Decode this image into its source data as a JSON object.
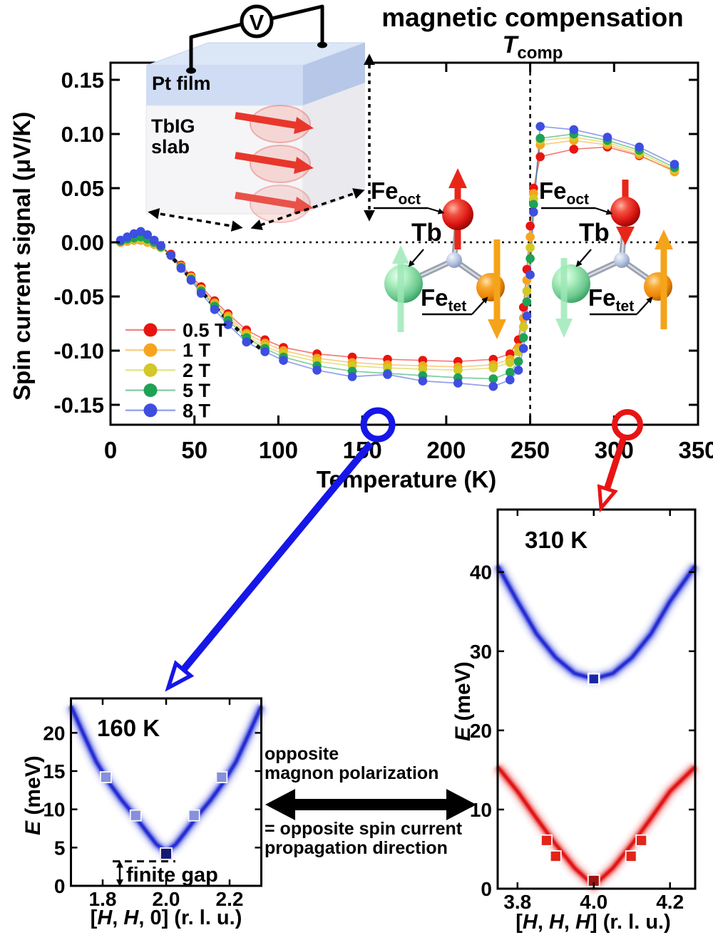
{
  "title": {
    "line1": "magnetic compensation",
    "t_symbol": "T",
    "t_sub": "comp"
  },
  "inset": {
    "voltmeter_label": "V",
    "pt_label": "Pt film",
    "slab_label_1": "TbIG",
    "slab_label_2": "slab"
  },
  "molecule_labels": {
    "fe": "Fe",
    "oct": "oct",
    "tet": "tet",
    "tb": "Tb"
  },
  "annotation": {
    "line1": "opposite",
    "line2": "magnon polarization",
    "line3": "= opposite spin current",
    "line4": "propagation direction"
  },
  "chart_data": [
    {
      "id": "spin-current-vs-temperature",
      "type": "scatter-line",
      "xlabel": "Temperature (K)",
      "ylabel": "Spin current signal (μV/K)",
      "xlim": [
        0,
        350
      ],
      "ylim": [
        -0.1684,
        0.1658
      ],
      "xticks": [
        0,
        50,
        100,
        150,
        200,
        250,
        300,
        350
      ],
      "yticks": [
        0.15,
        0.1,
        0.05,
        0.0,
        -0.05,
        -0.1,
        -0.15
      ],
      "ytick_labels": [
        "0.15",
        "0.10",
        "0.05",
        "0.00",
        "-0.05",
        "-0.10",
        "-0.15"
      ],
      "zero_dashed_line": 0,
      "tcomp_line_x": 250,
      "grid": false,
      "legend_position": "lower-left",
      "x": [
        6,
        10,
        14,
        18,
        22,
        26,
        30,
        36,
        42,
        48,
        54,
        62,
        70,
        81,
        92,
        103,
        123,
        144,
        165,
        186,
        207,
        228,
        238,
        243,
        246,
        248,
        250,
        252,
        256,
        276,
        296,
        315,
        336
      ],
      "series": [
        {
          "name": "0.5 T",
          "color": "#e81410",
          "values": [
            0.0,
            0.001,
            0.002,
            0.002,
            0.001,
            -0.001,
            -0.004,
            -0.011,
            -0.021,
            -0.031,
            -0.041,
            -0.054,
            -0.066,
            -0.081,
            -0.09,
            -0.097,
            -0.103,
            -0.106,
            -0.108,
            -0.109,
            -0.11,
            -0.108,
            -0.103,
            -0.09,
            -0.06,
            -0.025,
            0.015,
            0.05,
            0.079,
            0.086,
            0.088,
            0.08,
            0.066
          ]
        },
        {
          "name": "1 T",
          "color": "#f7a41c",
          "values": [
            0.0,
            0.001,
            0.002,
            0.002,
            0.0,
            -0.002,
            -0.005,
            -0.012,
            -0.022,
            -0.032,
            -0.043,
            -0.056,
            -0.068,
            -0.084,
            -0.093,
            -0.1,
            -0.107,
            -0.111,
            -0.113,
            -0.114,
            -0.115,
            -0.113,
            -0.108,
            -0.097,
            -0.07,
            -0.035,
            0.005,
            0.045,
            0.09,
            0.094,
            0.09,
            0.081,
            0.065
          ]
        },
        {
          "name": "2 T",
          "color": "#d2c826",
          "values": [
            0.001,
            0.002,
            0.003,
            0.003,
            0.001,
            -0.001,
            -0.005,
            -0.012,
            -0.023,
            -0.033,
            -0.044,
            -0.058,
            -0.07,
            -0.086,
            -0.096,
            -0.103,
            -0.11,
            -0.114,
            -0.116,
            -0.117,
            -0.118,
            -0.116,
            -0.111,
            -0.101,
            -0.078,
            -0.045,
            -0.005,
            0.04,
            0.094,
            0.097,
            0.092,
            0.083,
            0.067
          ]
        },
        {
          "name": "5 T",
          "color": "#1ea254",
          "values": [
            0.001,
            0.003,
            0.004,
            0.005,
            0.003,
            0.0,
            -0.004,
            -0.012,
            -0.023,
            -0.034,
            -0.045,
            -0.059,
            -0.072,
            -0.088,
            -0.098,
            -0.106,
            -0.114,
            -0.119,
            -0.121,
            -0.123,
            -0.125,
            -0.126,
            -0.12,
            -0.11,
            -0.088,
            -0.055,
            -0.015,
            0.035,
            0.096,
            0.1,
            0.094,
            0.085,
            0.069
          ]
        },
        {
          "name": "8 T",
          "color": "#3e4ee0",
          "values": [
            0.002,
            0.005,
            0.008,
            0.01,
            0.007,
            0.002,
            -0.003,
            -0.012,
            -0.024,
            -0.035,
            -0.047,
            -0.062,
            -0.076,
            -0.092,
            -0.101,
            -0.109,
            -0.118,
            -0.124,
            -0.122,
            -0.128,
            -0.13,
            -0.133,
            -0.127,
            -0.118,
            -0.098,
            -0.068,
            -0.03,
            0.028,
            0.107,
            0.104,
            0.097,
            0.088,
            0.072
          ]
        }
      ],
      "guide": {
        "style": "dotted-black",
        "x": [
          24,
          30,
          36,
          42,
          48,
          54,
          62,
          70,
          80,
          90
        ],
        "y": [
          -0.001,
          -0.005,
          -0.013,
          -0.023,
          -0.034,
          -0.045,
          -0.059,
          -0.072,
          -0.087,
          -0.099
        ]
      },
      "marked_temperatures": [
        {
          "T": 160,
          "color": "#1616e8"
        },
        {
          "T": 310,
          "color": "#e81414"
        }
      ]
    },
    {
      "id": "magnon-dispersion-160K",
      "type": "dispersion-band",
      "label": "160 K",
      "xlabel": "[H, H, 0] (r. l. u.)",
      "ylabel": "E (meV)",
      "xlim": [
        1.7,
        2.3
      ],
      "ylim": [
        0,
        24.5
      ],
      "xticks": [
        1.8,
        2.0,
        2.2
      ],
      "xtick_labels": [
        "1.8",
        "2.0",
        "2.2"
      ],
      "yticks": [
        0,
        5,
        10,
        15,
        20
      ],
      "band": {
        "color": "#1a28d0",
        "points": [
          [
            1.7,
            23.5
          ],
          [
            1.74,
            19.8
          ],
          [
            1.78,
            16.2
          ],
          [
            1.82,
            13.5
          ],
          [
            1.86,
            11.2
          ],
          [
            1.9,
            9.2
          ],
          [
            1.94,
            7.0
          ],
          [
            1.97,
            5.4
          ],
          [
            2.0,
            4.5
          ],
          [
            2.03,
            5.4
          ],
          [
            2.06,
            7.0
          ],
          [
            2.1,
            9.2
          ],
          [
            2.14,
            11.2
          ],
          [
            2.18,
            13.5
          ],
          [
            2.22,
            16.2
          ],
          [
            2.26,
            19.8
          ],
          [
            2.3,
            23.5
          ]
        ]
      },
      "markers": [
        [
          1.81,
          14.2
        ],
        [
          1.904,
          9.2
        ],
        [
          2.088,
          9.2
        ],
        [
          2.175,
          14.2
        ]
      ],
      "marker_dark": [
        2.0,
        4.2
      ],
      "marker_color": "#8690de",
      "marker_dark_color": "#141a72",
      "gap": {
        "E": 3.2,
        "label": "finite gap"
      }
    },
    {
      "id": "magnon-dispersion-310K",
      "type": "dispersion-band",
      "label": "310 K",
      "xlabel": "[H, H, H] (r. l. u.)",
      "ylabel": "E (meV)",
      "xlim": [
        3.748,
        4.266
      ],
      "ylim": [
        0,
        47.9
      ],
      "xticks": [
        3.8,
        4.0,
        4.2
      ],
      "xtick_labels": [
        "3.8",
        "4.0",
        "4.2"
      ],
      "yticks": [
        0,
        10,
        20,
        30,
        40
      ],
      "bands": [
        {
          "color": "#1a28d0",
          "points": [
            [
              3.748,
              40.8
            ],
            [
              3.8,
              36.3
            ],
            [
              3.85,
              32.2
            ],
            [
              3.9,
              29.2
            ],
            [
              3.95,
              27.2
            ],
            [
              4.0,
              26.5
            ],
            [
              4.05,
              27.2
            ],
            [
              4.1,
              29.2
            ],
            [
              4.15,
              32.2
            ],
            [
              4.2,
              36.3
            ],
            [
              4.266,
              40.8
            ]
          ],
          "marker_open": [
            4.0,
            26.5
          ],
          "marker_color": "#1b25a8"
        },
        {
          "color": "#e01010",
          "points": [
            [
              3.748,
              15.4
            ],
            [
              3.8,
              12.3
            ],
            [
              3.85,
              8.9
            ],
            [
              3.9,
              5.6
            ],
            [
              3.95,
              2.6
            ],
            [
              4.0,
              0.4
            ],
            [
              4.05,
              2.6
            ],
            [
              4.1,
              5.6
            ],
            [
              4.15,
              8.9
            ],
            [
              4.2,
              12.3
            ],
            [
              4.266,
              15.4
            ]
          ],
          "markers": [
            [
              3.876,
              6.1
            ],
            [
              3.9,
              4.1
            ],
            [
              4.098,
              4.1
            ],
            [
              4.125,
              6.1
            ]
          ],
          "marker_dark": [
            4.0,
            1.0
          ],
          "marker_color": "#e32419",
          "marker_dark_color": "#a01010"
        }
      ]
    }
  ]
}
